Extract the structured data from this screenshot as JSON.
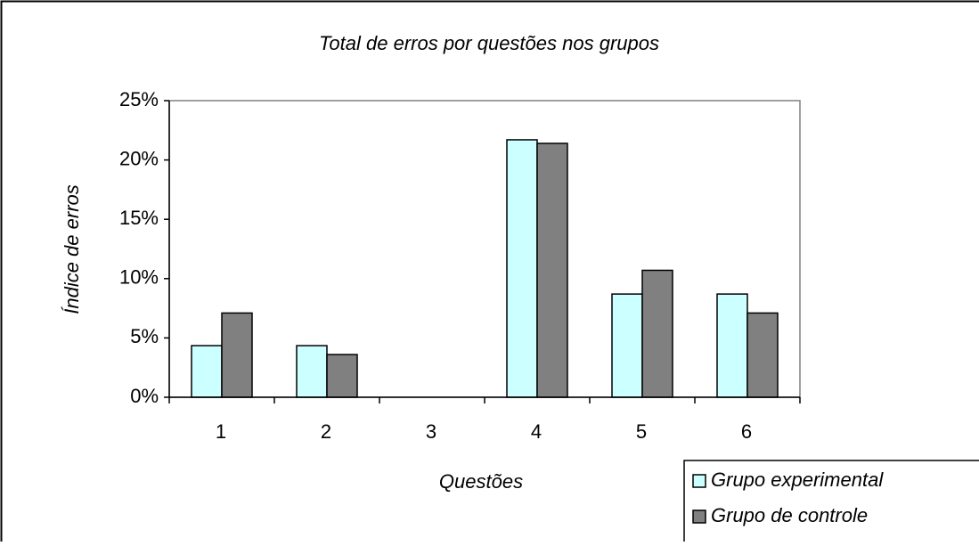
{
  "chart_data": {
    "type": "bar",
    "title": "Total de erros por questões nos grupos",
    "x_label": "Questões",
    "y_label": "Índice de erros",
    "categories": [
      "1",
      "2",
      "3",
      "4",
      "5",
      "6"
    ],
    "series": [
      {
        "name": "Grupo experimental",
        "color": "#ccffff",
        "values": [
          4.35,
          4.35,
          0,
          21.7,
          8.7,
          8.7
        ]
      },
      {
        "name": "Grupo de controle",
        "color": "#808080",
        "values": [
          7.1,
          3.6,
          0,
          21.4,
          10.7,
          7.1
        ]
      }
    ],
    "ylim": [
      0,
      25
    ],
    "yticks": [
      {
        "value": 0,
        "label": "0%"
      },
      {
        "value": 5,
        "label": "5%"
      },
      {
        "value": 10,
        "label": "10%"
      },
      {
        "value": 15,
        "label": "15%"
      },
      {
        "value": 20,
        "label": "20%"
      },
      {
        "value": 25,
        "label": "25%"
      }
    ],
    "legend": "bottom-right"
  }
}
